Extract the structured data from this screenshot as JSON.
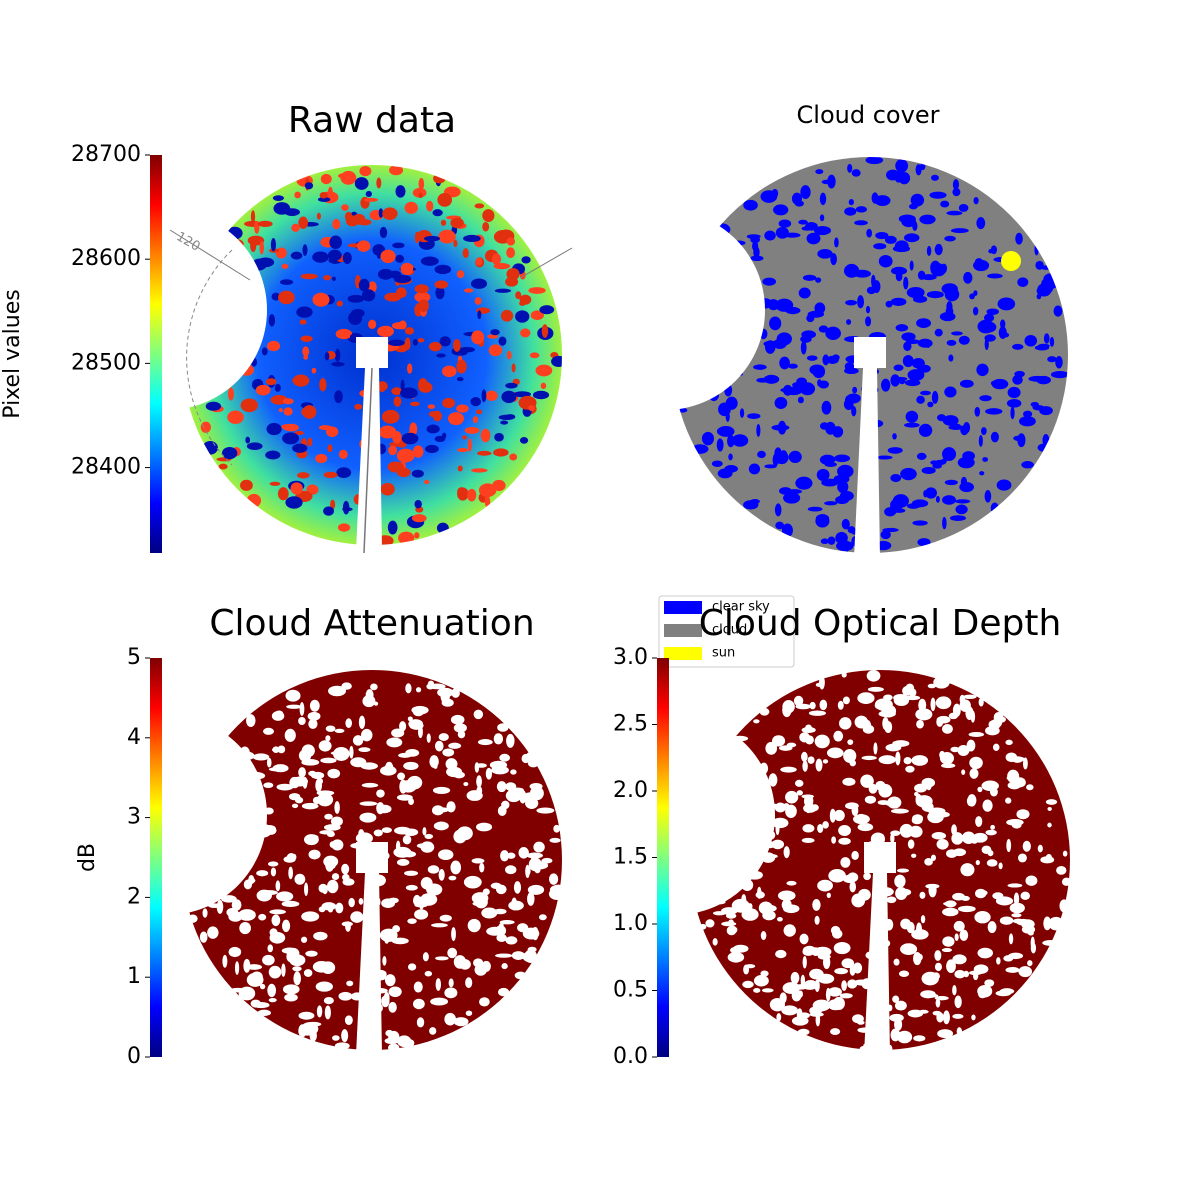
{
  "chart_data": [
    {
      "type": "image",
      "title": "Raw data",
      "annotation": "120",
      "colorbar": {
        "label": "Pixel values",
        "colormap": "jet",
        "lim": [
          28318,
          28700
        ],
        "ticks": [
          28400,
          28500,
          28600,
          28700
        ]
      }
    },
    {
      "type": "image",
      "title": "Cloud cover",
      "legend": [
        {
          "name": "clear sky",
          "color": "#0000ff"
        },
        {
          "name": "cloud",
          "color": "#808080"
        },
        {
          "name": "sun",
          "color": "#ffff00"
        }
      ]
    },
    {
      "type": "image",
      "title": "Cloud Attenuation",
      "colorbar": {
        "label": "dB",
        "colormap": "jet",
        "lim": [
          0,
          5
        ],
        "ticks": [
          0,
          1,
          2,
          3,
          4,
          5
        ]
      }
    },
    {
      "type": "image",
      "title": "Cloud Optical Depth",
      "colorbar": {
        "colormap": "jet",
        "lim": [
          0,
          3
        ],
        "ticks": [
          {
            "value": 0,
            "label": "0.0"
          },
          0.5,
          {
            "value": 1,
            "label": "1.0"
          },
          1.5,
          {
            "value": 2,
            "label": "2.0"
          },
          2.5,
          {
            "value": 3,
            "label": "3.0"
          }
        ]
      }
    }
  ]
}
